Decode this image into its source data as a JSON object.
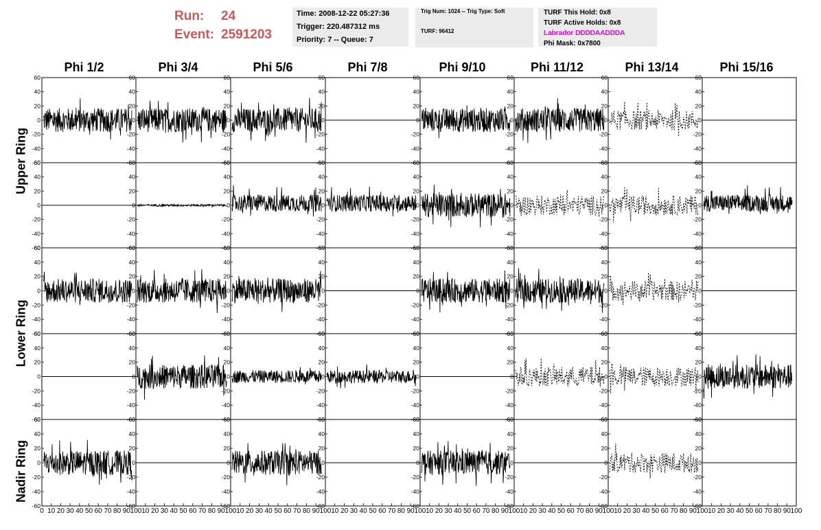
{
  "header": {
    "run_label": "Run:",
    "run_value": "24",
    "event_label": "Event:",
    "event_value": "2591203"
  },
  "time_box": {
    "time": "Time: 2008-12-22 05:27:36",
    "trigger": "Trigger: 220.487312 ms",
    "priority": "Priority: 7 -- Queue: 7"
  },
  "trig_box": {
    "trig": "Trig Num: 1024 -- Trig Type: Soft",
    "turf": "TURF: 96412"
  },
  "turf_box": {
    "this_hold": "TURF This Hold: 0x8",
    "active_holds": "TURF Active Holds: 0x8",
    "labrador": "Labrador DDDDAADDDA",
    "phi_mask": "Phi Mask: 0x7800",
    "labrador_color": "#e000e0"
  },
  "phi_titles": [
    "Phi 1/2",
    "Phi 3/4",
    "Phi 5/6",
    "Phi 7/8",
    "Phi 9/10",
    "Phi 11/12",
    "Phi 13/14",
    "Phi 15/16"
  ],
  "ring_labels": [
    "Upper Ring",
    "Lower Ring",
    "Nadir Ring"
  ],
  "chart_data": {
    "type": "line",
    "description_rows": 5,
    "description_cols": 8,
    "ylim": [
      -60,
      60
    ],
    "xlim": [
      0,
      100
    ],
    "y_ticks": [
      -60,
      -40,
      -20,
      0,
      20,
      40,
      60
    ],
    "x_ticks": [
      0,
      10,
      20,
      30,
      40,
      50,
      60,
      70,
      80,
      90,
      100
    ],
    "grid": false,
    "waveforms": [
      [
        "noisy",
        "noisy",
        "noisy",
        "flat",
        "noisy",
        "noisy",
        "dashed",
        "flat"
      ],
      [
        "flat",
        "small",
        "noisy_up",
        "noisy_up",
        "noisy",
        "dashed",
        "dashed",
        "noisy_up"
      ],
      [
        "noisy",
        "noisy",
        "noisy",
        "flat",
        "noisy",
        "noisy",
        "dashed",
        "flat"
      ],
      [
        "flat",
        "noisy",
        "noisy_small",
        "noisy_small",
        "flat",
        "dashed",
        "dashed",
        "noisy"
      ],
      [
        "noisy",
        "flat",
        "noisy",
        "flat",
        "noisy",
        "flat",
        "dashed",
        "flat"
      ]
    ]
  }
}
